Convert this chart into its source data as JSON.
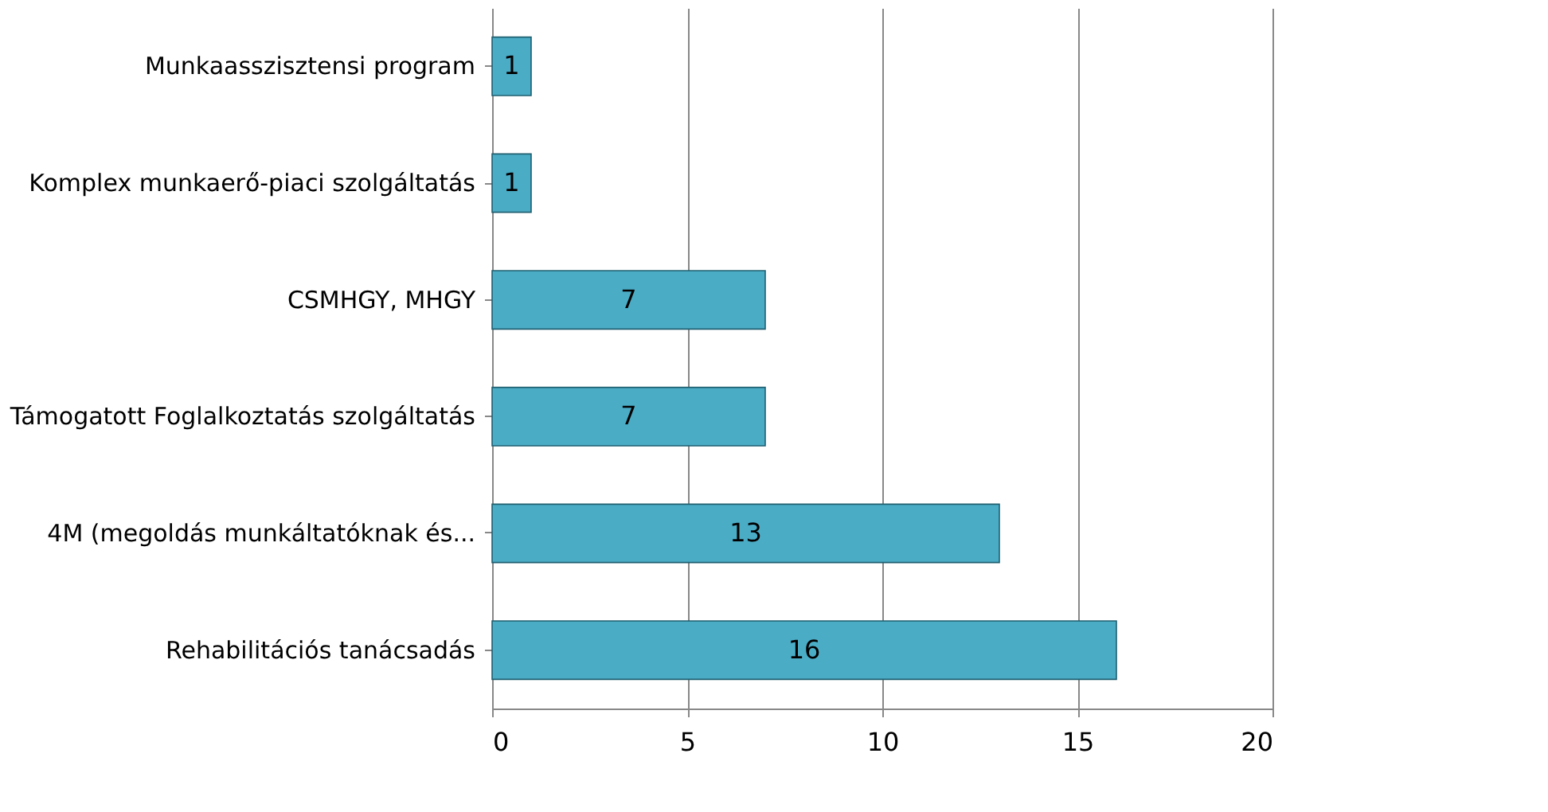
{
  "chart_data": {
    "type": "bar",
    "orientation": "horizontal",
    "categories": [
      "Munkaasszisztensi program",
      "Komplex munkaerő-piaci szolgáltatás",
      "CSMHGY, MHGY",
      "Támogatott Foglalkoztatás szolgáltatás",
      "4M (megoldás munkáltatóknak és...",
      "Rehabilitációs tanácsadás"
    ],
    "values": [
      1,
      1,
      7,
      7,
      13,
      16
    ],
    "color": "#4bacc6",
    "xlim": [
      0,
      20
    ],
    "xticks": [
      0,
      5,
      10,
      15,
      20
    ],
    "grid": "x",
    "data_labels": true
  }
}
